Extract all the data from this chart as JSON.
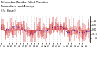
{
  "title_line1": "Milwaukee Weather Wind Direction",
  "title_line2": "Normalized and Average",
  "title_line3": "(24 Hours)",
  "bg_color": "#ffffff",
  "plot_bg_color": "#ffffff",
  "grid_color": "#aaaaaa",
  "bar_color": "#cc0000",
  "line_color": "#0000cc",
  "n_points": 288,
  "ylim": [
    -1.5,
    1.5
  ],
  "y_ticks": [
    -1.0,
    -0.5,
    0.0,
    0.5,
    1.0
  ],
  "seed": 42,
  "figsize": [
    1.6,
    0.87
  ],
  "dpi": 100
}
